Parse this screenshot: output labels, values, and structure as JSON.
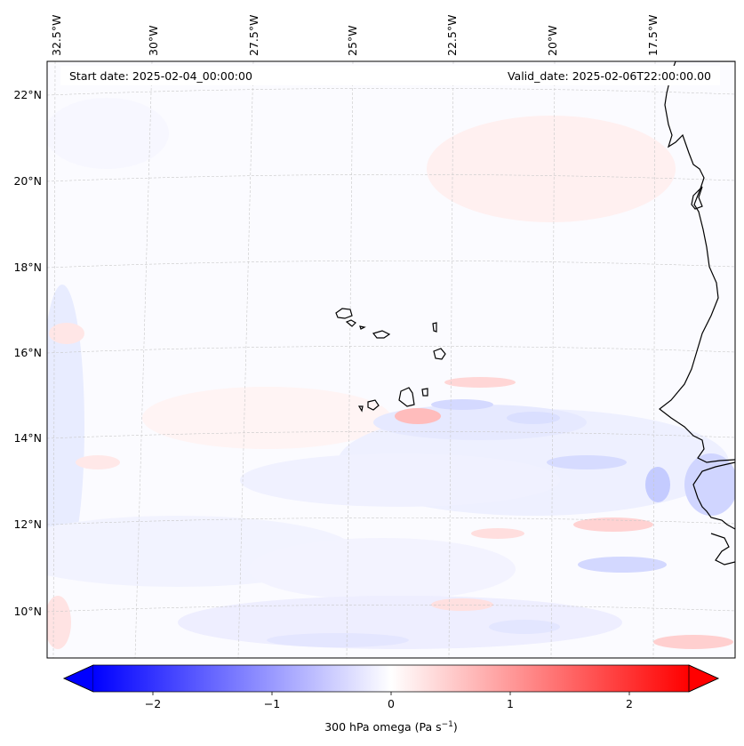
{
  "header": {
    "start_date": "Start date: 2025-02-04_00:00:00",
    "valid_date": "Valid_date: 2025-02-06T22:00:00.00"
  },
  "map": {
    "lon_labels": [
      "32.5°W",
      "30°W",
      "27.5°W",
      "25°W",
      "22.5°W",
      "20°W",
      "17.5°W"
    ],
    "lat_labels": [
      "22°N",
      "20°N",
      "18°N",
      "16°N",
      "14°N",
      "12°N",
      "10°N"
    ],
    "field": "300 hPa omega",
    "colors": {
      "negative": "#0000ff",
      "positive": "#ff0000",
      "neutral": "#ffffff",
      "coast": "#000000"
    }
  },
  "colorbar": {
    "ticks": [
      "−2",
      "−1",
      "0",
      "1",
      "2"
    ],
    "label": "300 hPa omega (Pa s",
    "label_exp": "−1",
    "label_close": ")"
  }
}
